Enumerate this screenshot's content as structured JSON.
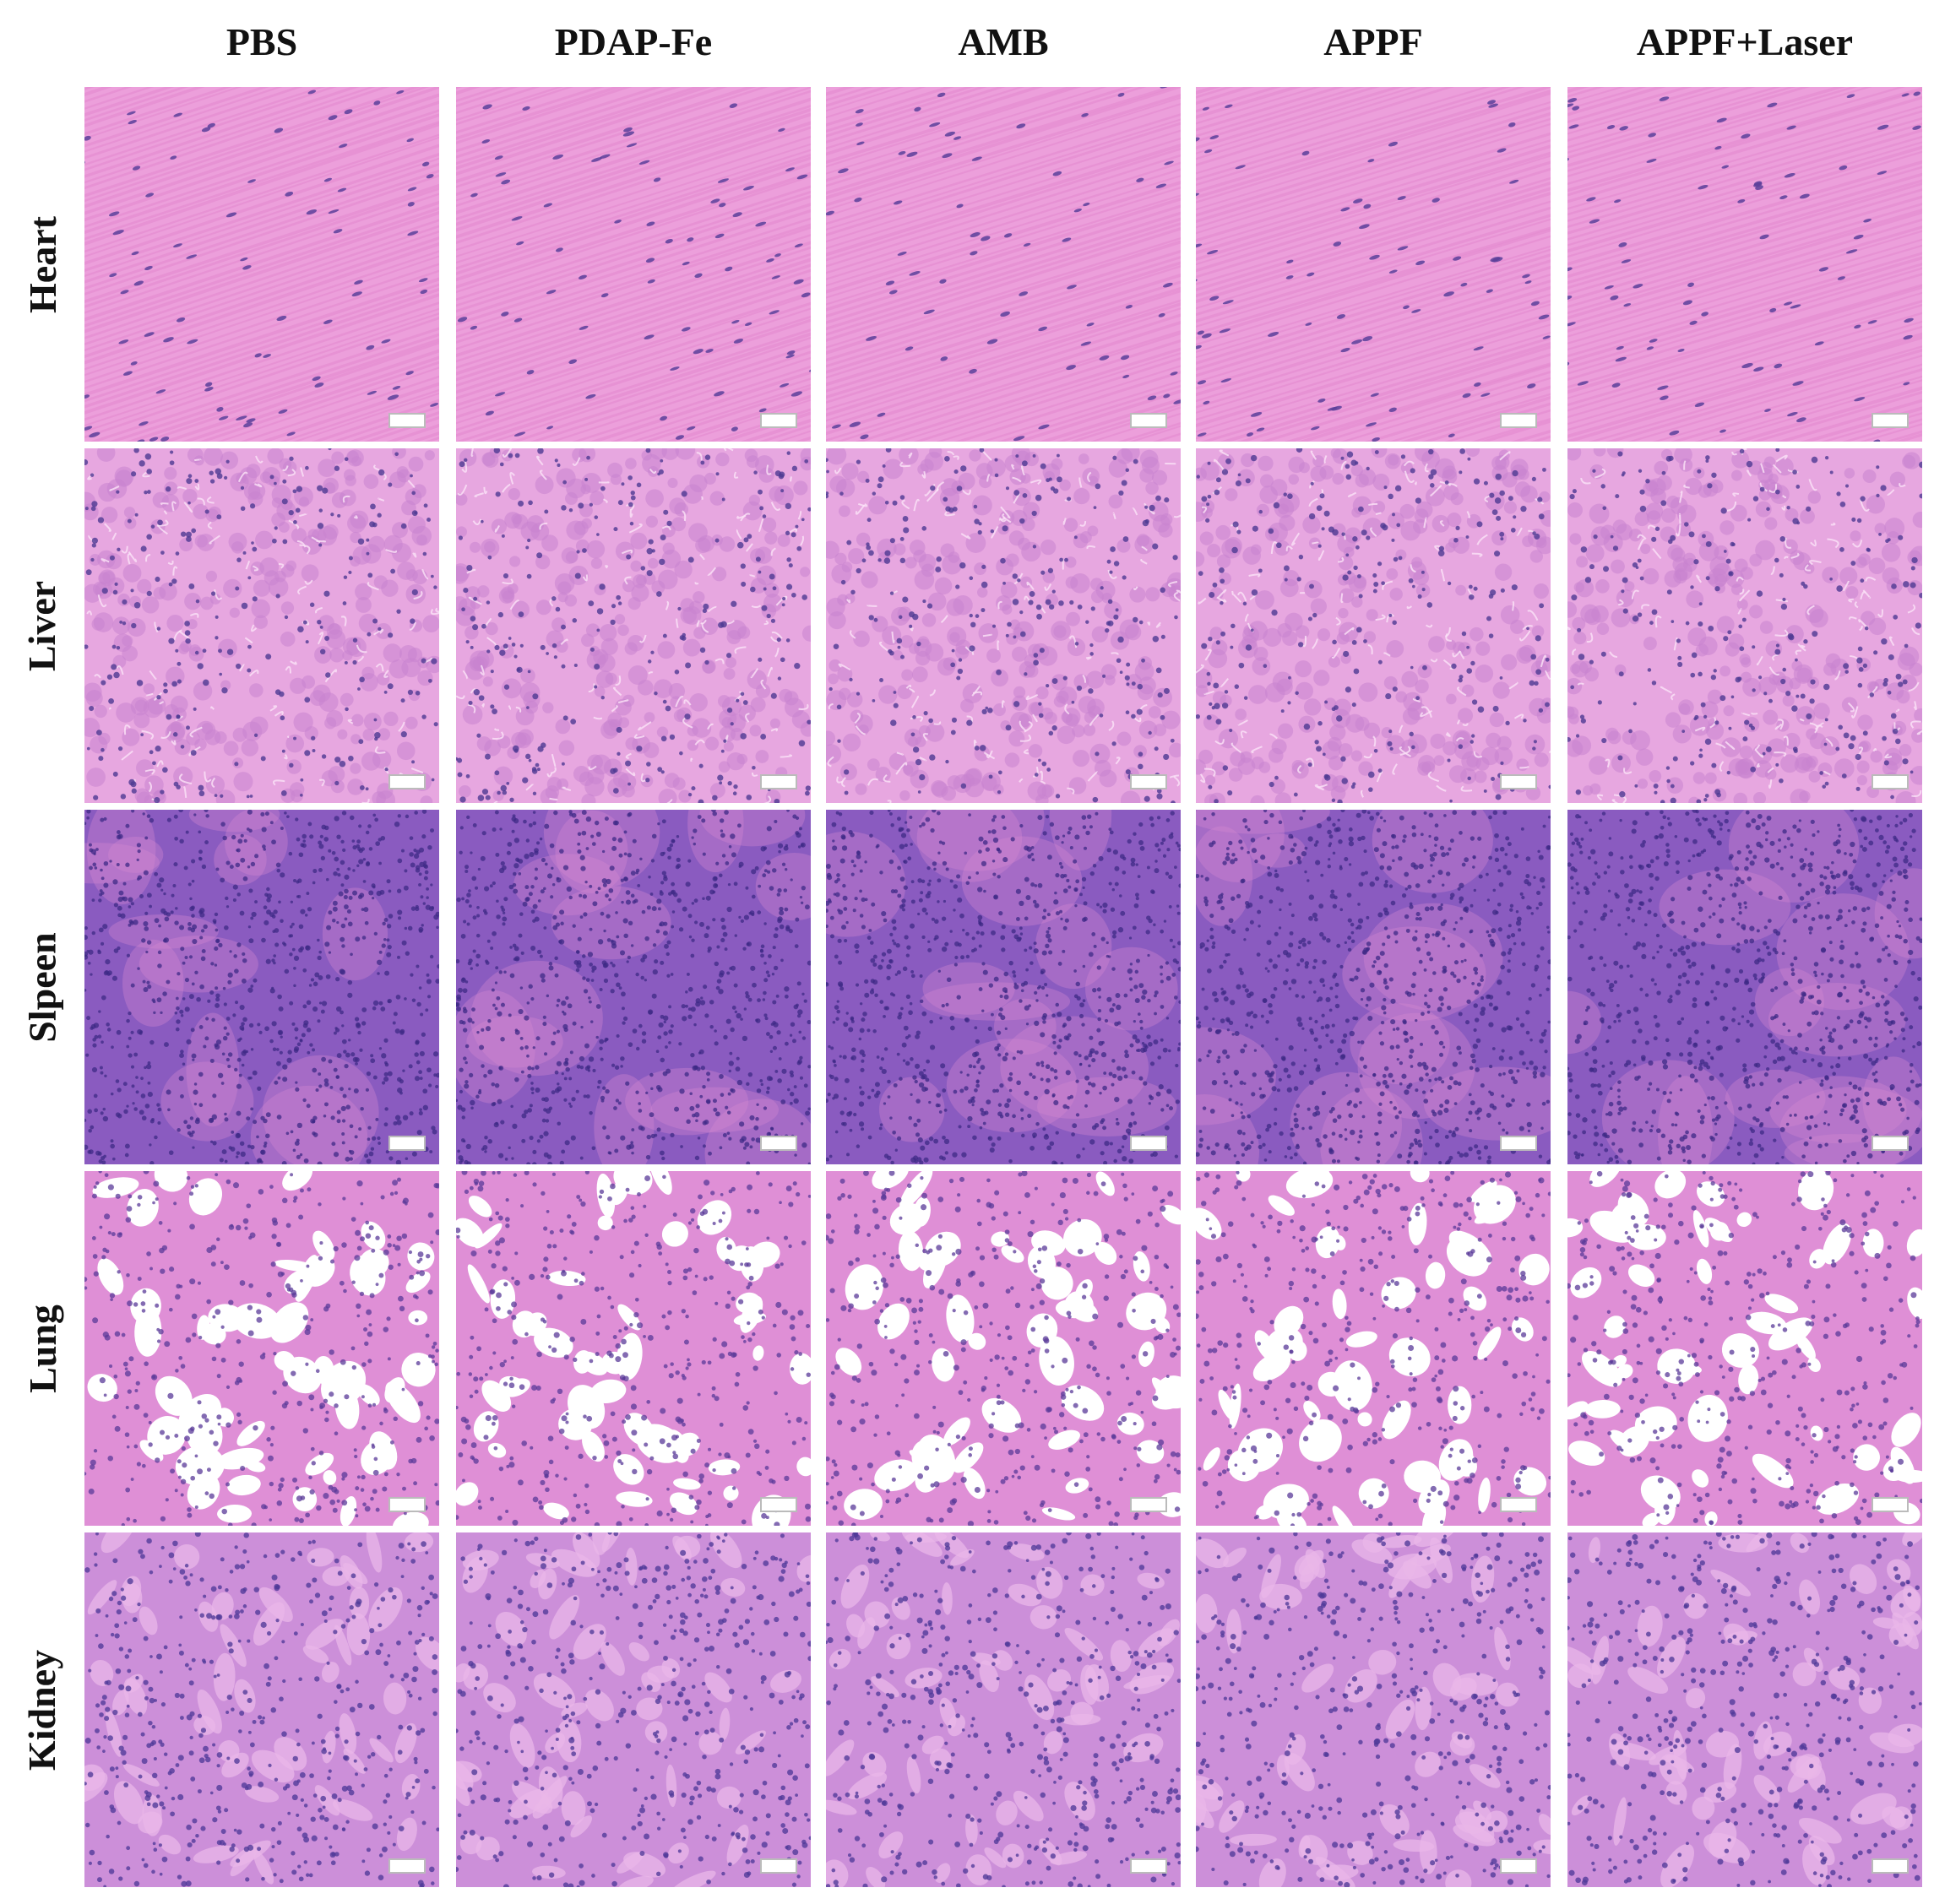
{
  "columns": [
    {
      "label": "PBS"
    },
    {
      "label": "PDAP-Fe"
    },
    {
      "label": "AMB"
    },
    {
      "label": "APPF"
    },
    {
      "label": "APPF+Laser"
    }
  ],
  "rows": [
    {
      "label": "Heart",
      "tissue": "heart",
      "colors": {
        "bg": "#ec9fdb",
        "fiber": "#e48bd0",
        "nucleus": "#5a3f9a"
      }
    },
    {
      "label": "Liver",
      "tissue": "liver",
      "colors": {
        "bg": "#e7a7e0",
        "cell": "#c984d0",
        "nucleus": "#4e3a92"
      }
    },
    {
      "label": "Slpeen",
      "tissue": "spleen",
      "colors": {
        "bg": "#8a5bc0",
        "red": "#d88ad2",
        "nucleus": "#3d2a86"
      }
    },
    {
      "label": "Lung",
      "tissue": "lung",
      "colors": {
        "bg": "#df8fd6",
        "air": "#ffffff",
        "nucleus": "#5a3a98"
      }
    },
    {
      "label": "Kidney",
      "tissue": "kidney",
      "colors": {
        "bg": "#cc8fd9",
        "tubule": "#e9b7e8",
        "nucleus": "#4f3a98"
      }
    }
  ]
}
